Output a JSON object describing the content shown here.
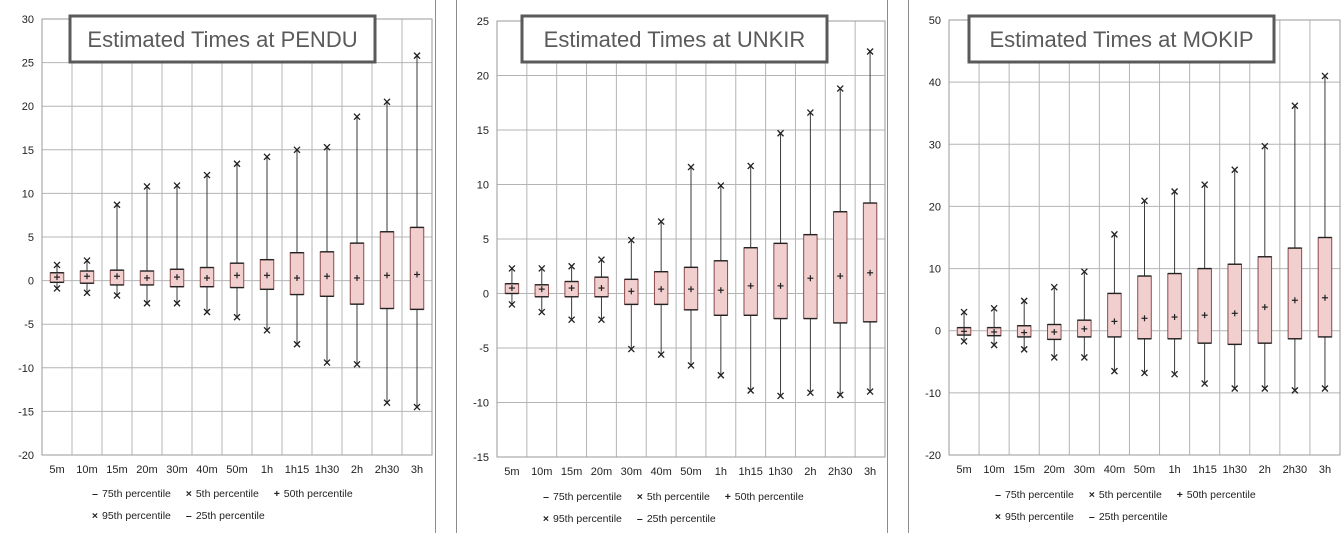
{
  "chart_data": [
    {
      "type": "box",
      "title": "Estimated Times at PENDU",
      "categories": [
        "5m",
        "10m",
        "15m",
        "20m",
        "30m",
        "40m",
        "50m",
        "1h",
        "1h15",
        "1h30",
        "2h",
        "2h30",
        "3h"
      ],
      "ylim": [
        -20,
        30
      ],
      "ytick_step": 5,
      "grid": true,
      "series": [
        {
          "name": "5th percentile",
          "values": [
            -0.9,
            -1.4,
            -1.7,
            -2.6,
            -2.6,
            -3.6,
            -4.2,
            -5.7,
            -7.3,
            -9.4,
            -9.6,
            -14.0,
            -14.5
          ]
        },
        {
          "name": "25th percentile",
          "values": [
            -0.2,
            -0.3,
            -0.5,
            -0.5,
            -0.7,
            -0.7,
            -0.8,
            -1.0,
            -1.6,
            -1.8,
            -2.7,
            -3.2,
            -3.3
          ]
        },
        {
          "name": "50th percentile",
          "values": [
            0.4,
            0.5,
            0.5,
            0.3,
            0.4,
            0.3,
            0.6,
            0.6,
            0.3,
            0.5,
            0.3,
            0.6,
            0.7
          ]
        },
        {
          "name": "75th percentile",
          "values": [
            0.9,
            1.1,
            1.2,
            1.1,
            1.3,
            1.5,
            2.0,
            2.4,
            3.2,
            3.3,
            4.3,
            5.6,
            6.1
          ]
        },
        {
          "name": "95th percentile",
          "values": [
            1.8,
            2.3,
            8.7,
            10.8,
            10.9,
            12.1,
            13.4,
            14.2,
            15.0,
            15.3,
            18.8,
            20.5,
            25.8
          ]
        }
      ]
    },
    {
      "type": "box",
      "title": "Estimated Times at UNKIR",
      "categories": [
        "5m",
        "10m",
        "15m",
        "20m",
        "30m",
        "40m",
        "50m",
        "1h",
        "1h15",
        "1h30",
        "2h",
        "2h30",
        "3h"
      ],
      "ylim": [
        -15,
        25
      ],
      "ytick_step": 5,
      "grid": true,
      "series": [
        {
          "name": "5th percentile",
          "values": [
            -1.0,
            -1.7,
            -2.4,
            -2.4,
            -5.1,
            -5.6,
            -6.6,
            -7.5,
            -8.9,
            -9.4,
            -9.1,
            -9.3,
            -9.0
          ]
        },
        {
          "name": "25th percentile",
          "values": [
            0.0,
            -0.3,
            -0.3,
            -0.3,
            -1.0,
            -1.0,
            -1.5,
            -2.0,
            -2.0,
            -2.3,
            -2.3,
            -2.7,
            -2.6
          ]
        },
        {
          "name": "50th percentile",
          "values": [
            0.5,
            0.4,
            0.5,
            0.5,
            0.2,
            0.4,
            0.4,
            0.3,
            0.7,
            0.7,
            1.4,
            1.6,
            1.9
          ]
        },
        {
          "name": "75th percentile",
          "values": [
            0.9,
            0.8,
            1.1,
            1.5,
            1.3,
            2.0,
            2.4,
            3.0,
            4.2,
            4.6,
            5.4,
            7.5,
            8.3
          ]
        },
        {
          "name": "95th percentile",
          "values": [
            2.3,
            2.3,
            2.5,
            3.1,
            4.9,
            6.6,
            11.6,
            9.9,
            11.7,
            14.7,
            16.6,
            18.8,
            22.2
          ]
        }
      ]
    },
    {
      "type": "box",
      "title": "Estimated Times at MOKIP",
      "categories": [
        "5m",
        "10m",
        "15m",
        "20m",
        "30m",
        "40m",
        "50m",
        "1h",
        "1h15",
        "1h30",
        "2h",
        "2h30",
        "3h"
      ],
      "ylim": [
        -20,
        50
      ],
      "ytick_step": 10,
      "grid": true,
      "series": [
        {
          "name": "5th percentile",
          "values": [
            -1.7,
            -2.3,
            -3.0,
            -4.3,
            -4.3,
            -6.5,
            -6.8,
            -7.0,
            -8.5,
            -9.3,
            -9.3,
            -9.6,
            -9.3
          ]
        },
        {
          "name": "25th percentile",
          "values": [
            -0.7,
            -0.8,
            -1.0,
            -1.4,
            -1.0,
            -1.0,
            -1.3,
            -1.3,
            -2.0,
            -2.2,
            -2.0,
            -1.3,
            -1.0
          ]
        },
        {
          "name": "50th percentile",
          "values": [
            -0.1,
            -0.2,
            -0.3,
            -0.2,
            0.3,
            1.5,
            2.0,
            2.2,
            2.5,
            2.8,
            3.8,
            4.9,
            5.3
          ]
        },
        {
          "name": "75th percentile",
          "values": [
            0.5,
            0.5,
            0.8,
            1.0,
            1.7,
            6.0,
            8.8,
            9.2,
            10.0,
            10.7,
            11.9,
            13.3,
            15.0
          ]
        },
        {
          "name": "95th percentile",
          "values": [
            3.0,
            3.6,
            4.8,
            7.0,
            9.5,
            15.5,
            20.9,
            22.4,
            23.5,
            25.9,
            29.7,
            36.2,
            41.0
          ]
        }
      ]
    }
  ],
  "legend": {
    "p75": "75th percentile",
    "p5": "5th percentile",
    "p50": "50th percentile",
    "p95": "95th percentile",
    "p25": "25th percentile"
  },
  "colors": {
    "box_fill": "#f2cfcf",
    "box_stroke": "#8a4a4a",
    "whisker": "#3a3a3a",
    "grid": "#b4b4b4",
    "title_border": "#5a5a5a",
    "title_text": "#5a5a5a"
  }
}
